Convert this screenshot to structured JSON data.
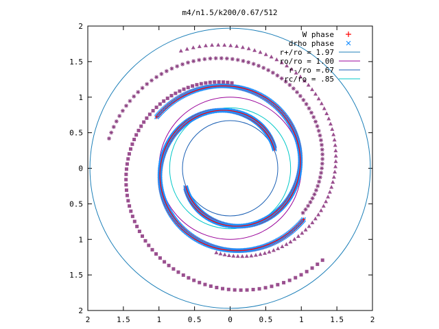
{
  "chart_data": {
    "type": "scatter",
    "title": "m4/n1.5/k200/0.67/512",
    "xlabel": "",
    "ylabel": "",
    "xlim": [
      -2,
      2
    ],
    "ylim": [
      -2,
      2
    ],
    "x_ticks": [
      -2,
      -1.5,
      -1,
      -0.5,
      0,
      0.5,
      1,
      1.5,
      2
    ],
    "y_ticks": [
      -2,
      -1.5,
      -1,
      -0.5,
      0,
      0.5,
      1,
      1.5,
      2
    ],
    "x_tick_labels": [
      "2",
      "1.5",
      "1",
      "0.5",
      "0",
      "0.5",
      "1",
      "1.5",
      "2"
    ],
    "y_tick_labels": [
      "2",
      "1.5",
      "1",
      "0.5",
      "0",
      "0.5",
      "1",
      "1.5",
      "2"
    ],
    "grid": false,
    "legend_position": "top-right",
    "series": [
      {
        "name": "W phase",
        "marker": "plus",
        "color": "#ff0000",
        "description_of_shape": "points along four spiral arms (two inner, two outer)"
      },
      {
        "name": "drho phase",
        "marker": "cross",
        "color": "#1e90ff",
        "description_of_shape": "points overlapping W phase along the same spiral arms"
      },
      {
        "name": "r+/ro = 1.97",
        "type": "circle",
        "radius": 1.97,
        "color": "#1c7fb8"
      },
      {
        "name": "ro/ro = 1.00",
        "type": "circle",
        "radius": 1.0,
        "color": "#990099"
      },
      {
        "name": "r-/ro = .67",
        "type": "circle",
        "radius": 0.67,
        "color": "#1a5fb4"
      },
      {
        "name": "rc/ro = .85",
        "type": "circle",
        "radius": 0.85,
        "color": "#00c8c8"
      }
    ],
    "legend_labels": [
      "W phase",
      "drho phase",
      "r+/ro = 1.97",
      "ro/ro = 1.00",
      "r-/ro =.67",
      "rc/ro = .85"
    ]
  }
}
